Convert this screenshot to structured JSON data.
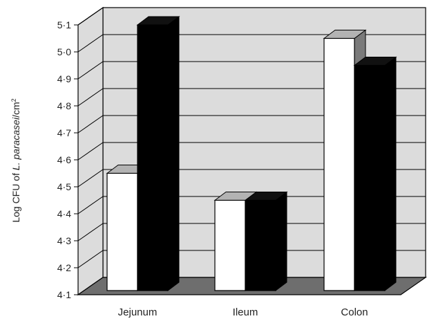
{
  "chart_data": {
    "type": "bar",
    "categories": [
      "Jejunum",
      "Ileum",
      "Colon"
    ],
    "series": [
      {
        "values": [
          4.55,
          4.45,
          5.05
        ]
      },
      {
        "values": [
          5.1,
          4.45,
          4.95
        ]
      }
    ],
    "ylabel_prefix": "Log CFU of ",
    "ylabel_italic": "L. paracasei",
    "ylabel_suffix": "/cm",
    "ylabel_sup": "2",
    "ylim": [
      4.1,
      5.1
    ],
    "yticks": [
      "4·1",
      "4·2",
      "4·3",
      "4·4",
      "4·5",
      "4·6",
      "4·7",
      "4·8",
      "4·9",
      "5·0",
      "5·1"
    ],
    "grid": true,
    "legend": "none"
  },
  "colors": {
    "wall": "#dcdcdc",
    "floor": "#6e6e6e",
    "series_fill": [
      "#ffffff",
      "#000000"
    ],
    "series_top": [
      "#b3b3b3",
      "#111111"
    ],
    "series_side": [
      "#7a7a7a",
      "#000000"
    ]
  }
}
